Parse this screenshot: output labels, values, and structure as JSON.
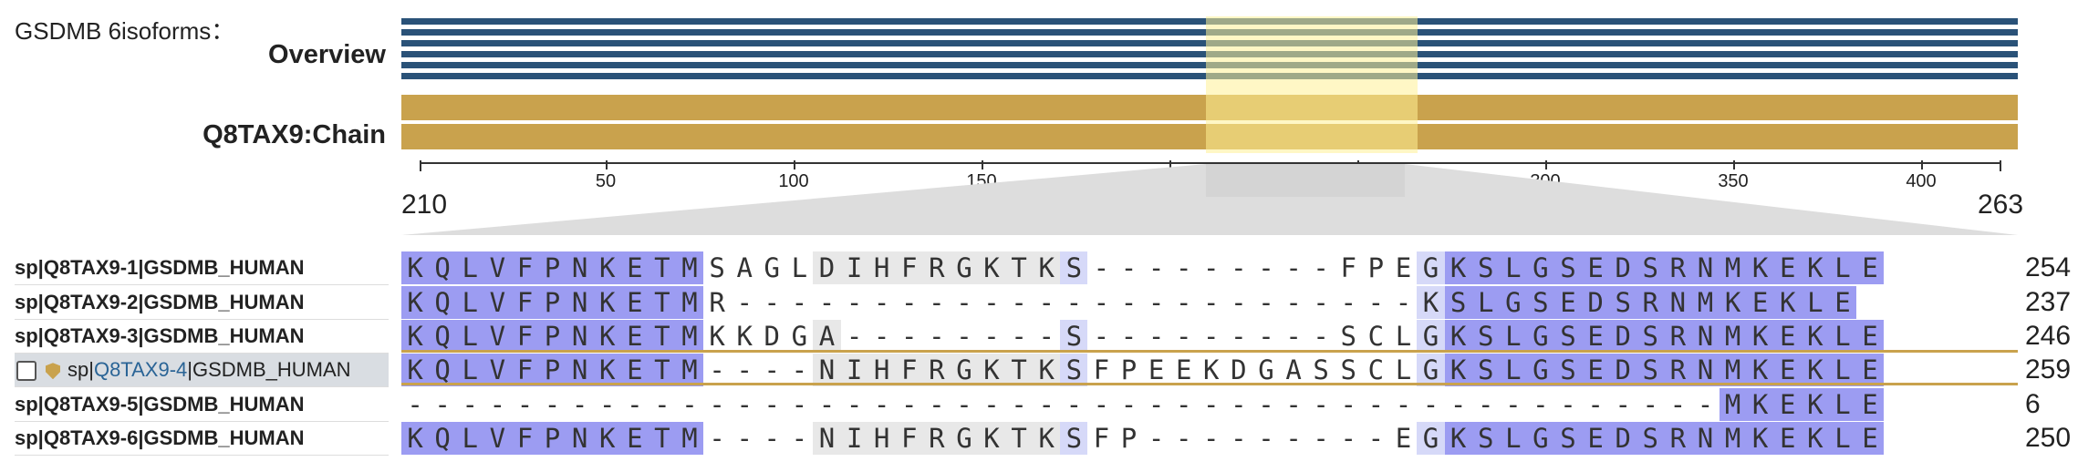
{
  "header": {
    "title": "GSDMB 6isoforms："
  },
  "tracks": {
    "overview_label": "Overview",
    "chain_label": "Q8TAX9:Chain"
  },
  "axis": {
    "ticks": [
      "50",
      "100",
      "150",
      "200",
      "250",
      "300",
      "350",
      "400"
    ],
    "range_start": "210",
    "range_end": "263"
  },
  "rows": [
    {
      "label": "sp|Q8TAX9-1|GSDMB_HUMAN",
      "prefix": "sp|",
      "accession": "Q8TAX9-1",
      "suffix": "|GSDMB_HUMAN",
      "seq": "KQLVFPNKETMSAGLDIHFRGKTKS---------FPEGKSLGSEDSRNMKEKLE",
      "end": "254"
    },
    {
      "label": "sp|Q8TAX9-2|GSDMB_HUMAN",
      "prefix": "sp|",
      "accession": "Q8TAX9-2",
      "suffix": "|GSDMB_HUMAN",
      "seq": "KQLVFPNKETMR-------------------------KSLGSEDSRNMKEKLE",
      "end": "237"
    },
    {
      "label": "sp|Q8TAX9-3|GSDMB_HUMAN",
      "prefix": "sp|",
      "accession": "Q8TAX9-3",
      "suffix": "|GSDMB_HUMAN",
      "seq": "KQLVFPNKETMKKDGA--------S---------SCLGKSLGSEDSRNMKEKLE",
      "end": "246"
    },
    {
      "label": "sp|Q8TAX9-4|GSDMB_HUMAN",
      "prefix": "sp|",
      "accession": "Q8TAX9-4",
      "suffix": "|GSDMB_HUMAN",
      "seq": "KQLVFPNKETM----NIHFRGKTKSFPEEKDGASSCLGKSLGSEDSRNMKEKLE",
      "end": "259"
    },
    {
      "label": "sp|Q8TAX9-5|GSDMB_HUMAN",
      "prefix": "sp|",
      "accession": "Q8TAX9-5",
      "suffix": "|GSDMB_HUMAN",
      "seq": "------------------------------------------------MKEKLE",
      "end": "6"
    },
    {
      "label": "sp|Q8TAX9-6|GSDMB_HUMAN",
      "prefix": "sp|",
      "accession": "Q8TAX9-6",
      "suffix": "|GSDMB_HUMAN",
      "seq": "KQLVFPNKETM----NIHFRGKTKSFP---------EGKSLGSEDSRNMKEKLE",
      "end": "250"
    }
  ],
  "colors": {
    "conserved": "#9c9cf2",
    "partial": "#d6d9f8",
    "gap_shade": "#e8e8e8",
    "selection": "#c9a24d",
    "overview": "#2a5278"
  },
  "icons": {
    "row4_icon": "shield-icon"
  }
}
